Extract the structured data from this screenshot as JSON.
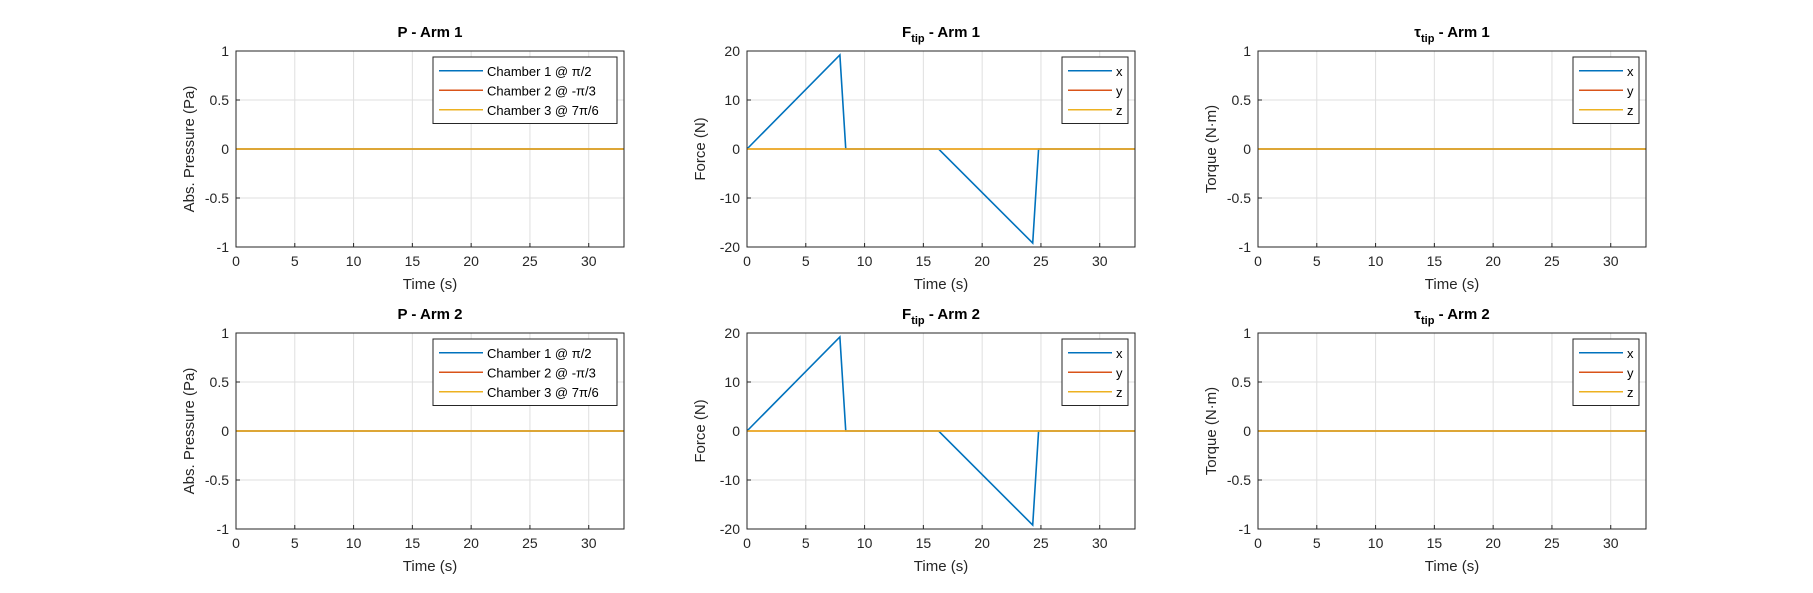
{
  "colors": {
    "series1": "#0072BD",
    "series2": "#D95319",
    "series3": "#EDB120",
    "axes": "#262626",
    "grid": "#DFDFDF"
  },
  "chart_data": [
    {
      "type": "line",
      "title": "P - Arm 1",
      "xlabel": "Time (s)",
      "ylabel": "Abs. Pressure (Pa)",
      "xlim": [
        0,
        33
      ],
      "ylim": [
        -1,
        1
      ],
      "xticks": [
        "0",
        "5",
        "10",
        "15",
        "20",
        "25",
        "30"
      ],
      "yticks": [
        "-1",
        "-0.5",
        "0",
        "0.5",
        "1"
      ],
      "grid": true,
      "legend_position": "top-right",
      "series": [
        {
          "name": "Chamber 1 @ π/2",
          "x": [
            0,
            33
          ],
          "y": [
            0,
            0
          ]
        },
        {
          "name": "Chamber 2 @ -π/3",
          "x": [
            0,
            33
          ],
          "y": [
            0,
            0
          ]
        },
        {
          "name": "Chamber 3 @ 7π/6",
          "x": [
            0,
            33
          ],
          "y": [
            0,
            0
          ]
        }
      ]
    },
    {
      "type": "line",
      "title": "F",
      "title_subscript": "tip",
      "title_suffix": " - Arm 1",
      "xlabel": "Time (s)",
      "ylabel": "Force (N)",
      "xlim": [
        0,
        33
      ],
      "ylim": [
        -20,
        20
      ],
      "xticks": [
        "0",
        "5",
        "10",
        "15",
        "20",
        "25",
        "30"
      ],
      "yticks": [
        "-20",
        "-10",
        "0",
        "10",
        "20"
      ],
      "grid": true,
      "legend_position": "top-right",
      "series": [
        {
          "name": "x",
          "x": [
            0,
            7.9,
            8.4,
            16.3,
            24.3,
            24.8,
            33
          ],
          "y": [
            0,
            19.2,
            0,
            0,
            -19.2,
            0,
            0
          ]
        },
        {
          "name": "y",
          "x": [
            0,
            33
          ],
          "y": [
            0,
            0
          ]
        },
        {
          "name": "z",
          "x": [
            0,
            33
          ],
          "y": [
            0,
            0
          ]
        }
      ]
    },
    {
      "type": "line",
      "title": "τ",
      "title_subscript": "tip",
      "title_suffix": " - Arm 1",
      "xlabel": "Time (s)",
      "ylabel": "Torque (N·m)",
      "xlim": [
        0,
        33
      ],
      "ylim": [
        -1,
        1
      ],
      "xticks": [
        "0",
        "5",
        "10",
        "15",
        "20",
        "25",
        "30"
      ],
      "yticks": [
        "-1",
        "-0.5",
        "0",
        "0.5",
        "1"
      ],
      "grid": true,
      "legend_position": "top-right",
      "series": [
        {
          "name": "x",
          "x": [
            0,
            33
          ],
          "y": [
            0,
            0
          ]
        },
        {
          "name": "y",
          "x": [
            0,
            33
          ],
          "y": [
            0,
            0
          ]
        },
        {
          "name": "z",
          "x": [
            0,
            33
          ],
          "y": [
            0,
            0
          ]
        }
      ]
    },
    {
      "type": "line",
      "title": "P - Arm 2",
      "xlabel": "Time (s)",
      "ylabel": "Abs. Pressure (Pa)",
      "xlim": [
        0,
        33
      ],
      "ylim": [
        -1,
        1
      ],
      "xticks": [
        "0",
        "5",
        "10",
        "15",
        "20",
        "25",
        "30"
      ],
      "yticks": [
        "-1",
        "-0.5",
        "0",
        "0.5",
        "1"
      ],
      "grid": true,
      "legend_position": "top-right",
      "series": [
        {
          "name": "Chamber 1 @ π/2",
          "x": [
            0,
            33
          ],
          "y": [
            0,
            0
          ]
        },
        {
          "name": "Chamber 2 @ -π/3",
          "x": [
            0,
            33
          ],
          "y": [
            0,
            0
          ]
        },
        {
          "name": "Chamber 3 @ 7π/6",
          "x": [
            0,
            33
          ],
          "y": [
            0,
            0
          ]
        }
      ]
    },
    {
      "type": "line",
      "title": "F",
      "title_subscript": "tip",
      "title_suffix": " - Arm 2",
      "xlabel": "Time (s)",
      "ylabel": "Force (N)",
      "xlim": [
        0,
        33
      ],
      "ylim": [
        -20,
        20
      ],
      "xticks": [
        "0",
        "5",
        "10",
        "15",
        "20",
        "25",
        "30"
      ],
      "yticks": [
        "-20",
        "-10",
        "0",
        "10",
        "20"
      ],
      "grid": true,
      "legend_position": "top-right",
      "series": [
        {
          "name": "x",
          "x": [
            0,
            7.9,
            8.4,
            16.3,
            24.3,
            24.8,
            33
          ],
          "y": [
            0,
            19.2,
            0,
            0,
            -19.2,
            0,
            0
          ]
        },
        {
          "name": "y",
          "x": [
            0,
            33
          ],
          "y": [
            0,
            0
          ]
        },
        {
          "name": "z",
          "x": [
            0,
            33
          ],
          "y": [
            0,
            0
          ]
        }
      ]
    },
    {
      "type": "line",
      "title": "τ",
      "title_subscript": "tip",
      "title_suffix": " - Arm 2",
      "xlabel": "Time (s)",
      "ylabel": "Torque (N·m)",
      "xlim": [
        0,
        33
      ],
      "ylim": [
        -1,
        1
      ],
      "xticks": [
        "0",
        "5",
        "10",
        "15",
        "20",
        "25",
        "30"
      ],
      "yticks": [
        "-1",
        "-0.5",
        "0",
        "0.5",
        "1"
      ],
      "grid": true,
      "legend_position": "top-right",
      "series": [
        {
          "name": "x",
          "x": [
            0,
            33
          ],
          "y": [
            0,
            0
          ]
        },
        {
          "name": "y",
          "x": [
            0,
            33
          ],
          "y": [
            0,
            0
          ]
        },
        {
          "name": "z",
          "x": [
            0,
            33
          ],
          "y": [
            0,
            0
          ]
        }
      ]
    }
  ]
}
